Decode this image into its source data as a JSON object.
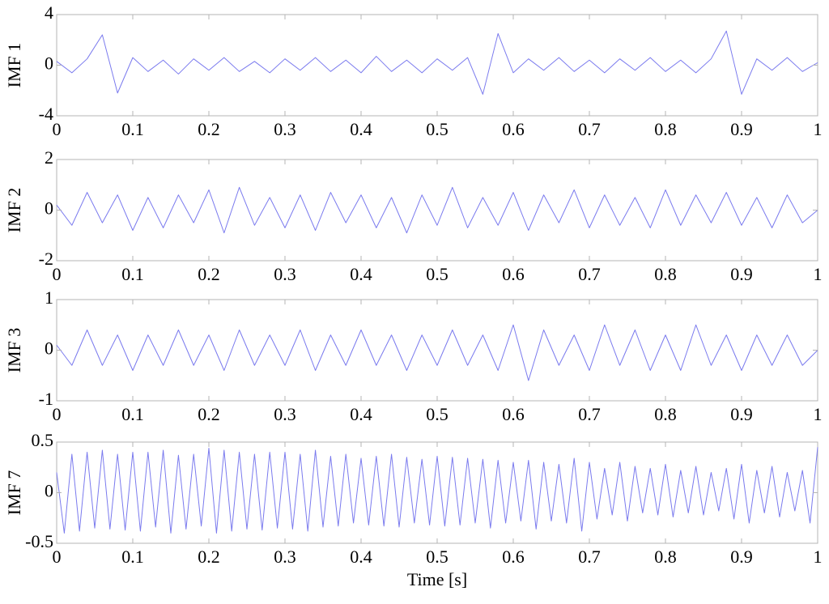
{
  "chart_data": [
    {
      "type": "line",
      "ylabel": "IMF 1",
      "xlim": [
        0,
        1
      ],
      "ylim": [
        -4,
        4
      ],
      "xticks": [
        0,
        0.1,
        0.2,
        0.3,
        0.4,
        0.5,
        0.6,
        0.7,
        0.8,
        0.9,
        1
      ],
      "yticks": [
        -4,
        0,
        4
      ],
      "x": [
        0,
        0.02,
        0.04,
        0.06,
        0.08,
        0.1,
        0.12,
        0.14,
        0.16,
        0.18,
        0.2,
        0.22,
        0.24,
        0.26,
        0.28,
        0.3,
        0.32,
        0.34,
        0.36,
        0.38,
        0.4,
        0.42,
        0.44,
        0.46,
        0.48,
        0.5,
        0.52,
        0.54,
        0.56,
        0.58,
        0.6,
        0.62,
        0.64,
        0.66,
        0.68,
        0.7,
        0.72,
        0.74,
        0.76,
        0.78,
        0.8,
        0.82,
        0.84,
        0.86,
        0.88,
        0.9,
        0.92,
        0.94,
        0.96,
        0.98,
        1
      ],
      "series": [
        {
          "color": "#7a7aee",
          "values": [
            0.3,
            -0.6,
            0.5,
            2.4,
            -2.2,
            0.6,
            -0.5,
            0.4,
            -0.7,
            0.5,
            -0.4,
            0.6,
            -0.5,
            0.3,
            -0.6,
            0.5,
            -0.4,
            0.6,
            -0.5,
            0.4,
            -0.6,
            0.7,
            -0.5,
            0.4,
            -0.6,
            0.5,
            -0.4,
            0.6,
            -2.3,
            2.5,
            -0.6,
            0.5,
            -0.4,
            0.6,
            -0.5,
            0.4,
            -0.6,
            0.5,
            -0.4,
            0.6,
            -0.5,
            0.4,
            -0.6,
            0.5,
            2.7,
            -2.3,
            0.5,
            -0.4,
            0.6,
            -0.5,
            0.2
          ]
        }
      ]
    },
    {
      "type": "line",
      "ylabel": "IMF 2",
      "xlim": [
        0,
        1
      ],
      "ylim": [
        -2,
        2
      ],
      "xticks": [
        0,
        0.1,
        0.2,
        0.3,
        0.4,
        0.5,
        0.6,
        0.7,
        0.8,
        0.9,
        1
      ],
      "yticks": [
        -2,
        0,
        2
      ],
      "x": [
        0,
        0.02,
        0.04,
        0.06,
        0.08,
        0.1,
        0.12,
        0.14,
        0.16,
        0.18,
        0.2,
        0.22,
        0.24,
        0.26,
        0.28,
        0.3,
        0.32,
        0.34,
        0.36,
        0.38,
        0.4,
        0.42,
        0.44,
        0.46,
        0.48,
        0.5,
        0.52,
        0.54,
        0.56,
        0.58,
        0.6,
        0.62,
        0.64,
        0.66,
        0.68,
        0.7,
        0.72,
        0.74,
        0.76,
        0.78,
        0.8,
        0.82,
        0.84,
        0.86,
        0.88,
        0.9,
        0.92,
        0.94,
        0.96,
        0.98,
        1
      ],
      "series": [
        {
          "color": "#7a7aee",
          "values": [
            0.2,
            -0.6,
            0.7,
            -0.5,
            0.6,
            -0.8,
            0.5,
            -0.7,
            0.6,
            -0.5,
            0.8,
            -0.9,
            0.9,
            -0.6,
            0.5,
            -0.7,
            0.6,
            -0.8,
            0.7,
            -0.5,
            0.6,
            -0.7,
            0.5,
            -0.9,
            0.6,
            -0.6,
            0.9,
            -0.7,
            0.5,
            -0.6,
            0.7,
            -0.8,
            0.6,
            -0.5,
            0.8,
            -0.7,
            0.6,
            -0.6,
            0.5,
            -0.7,
            0.8,
            -0.6,
            0.6,
            -0.5,
            0.7,
            -0.6,
            0.5,
            -0.7,
            0.6,
            -0.5,
            0.0
          ]
        }
      ]
    },
    {
      "type": "line",
      "ylabel": "IMF 3",
      "xlim": [
        0,
        1
      ],
      "ylim": [
        -1,
        1
      ],
      "xticks": [
        0,
        0.1,
        0.2,
        0.3,
        0.4,
        0.5,
        0.6,
        0.7,
        0.8,
        0.9,
        1
      ],
      "yticks": [
        -1,
        0,
        1
      ],
      "x": [
        0,
        0.02,
        0.04,
        0.06,
        0.08,
        0.1,
        0.12,
        0.14,
        0.16,
        0.18,
        0.2,
        0.22,
        0.24,
        0.26,
        0.28,
        0.3,
        0.32,
        0.34,
        0.36,
        0.38,
        0.4,
        0.42,
        0.44,
        0.46,
        0.48,
        0.5,
        0.52,
        0.54,
        0.56,
        0.58,
        0.6,
        0.62,
        0.64,
        0.66,
        0.68,
        0.7,
        0.72,
        0.74,
        0.76,
        0.78,
        0.8,
        0.82,
        0.84,
        0.86,
        0.88,
        0.9,
        0.92,
        0.94,
        0.96,
        0.98,
        1
      ],
      "series": [
        {
          "color": "#7a7aee",
          "values": [
            0.1,
            -0.3,
            0.4,
            -0.3,
            0.3,
            -0.4,
            0.3,
            -0.3,
            0.4,
            -0.3,
            0.3,
            -0.4,
            0.4,
            -0.3,
            0.3,
            -0.3,
            0.4,
            -0.4,
            0.3,
            -0.3,
            0.4,
            -0.3,
            0.3,
            -0.4,
            0.3,
            -0.3,
            0.4,
            -0.3,
            0.3,
            -0.4,
            0.5,
            -0.6,
            0.4,
            -0.3,
            0.3,
            -0.4,
            0.5,
            -0.3,
            0.4,
            -0.4,
            0.3,
            -0.4,
            0.5,
            -0.3,
            0.3,
            -0.4,
            0.3,
            -0.3,
            0.3,
            -0.3,
            0.0
          ]
        }
      ]
    },
    {
      "type": "line",
      "ylabel": "IMF 7",
      "xlabel": "Time [s]",
      "xlim": [
        0,
        1
      ],
      "ylim": [
        -0.5,
        0.5
      ],
      "xticks": [
        0,
        0.1,
        0.2,
        0.3,
        0.4,
        0.5,
        0.6,
        0.7,
        0.8,
        0.9,
        1
      ],
      "yticks": [
        -0.5,
        0,
        0.5
      ],
      "x": [
        0,
        0.01,
        0.02,
        0.03,
        0.04,
        0.05,
        0.06,
        0.07,
        0.08,
        0.09,
        0.1,
        0.11,
        0.12,
        0.13,
        0.14,
        0.15,
        0.16,
        0.17,
        0.18,
        0.19,
        0.2,
        0.21,
        0.22,
        0.23,
        0.24,
        0.25,
        0.26,
        0.27,
        0.28,
        0.29,
        0.3,
        0.31,
        0.32,
        0.33,
        0.34,
        0.35,
        0.36,
        0.37,
        0.38,
        0.39,
        0.4,
        0.41,
        0.42,
        0.43,
        0.44,
        0.45,
        0.46,
        0.47,
        0.48,
        0.49,
        0.5,
        0.51,
        0.52,
        0.53,
        0.54,
        0.55,
        0.56,
        0.57,
        0.58,
        0.59,
        0.6,
        0.61,
        0.62,
        0.63,
        0.64,
        0.65,
        0.66,
        0.67,
        0.68,
        0.69,
        0.7,
        0.71,
        0.72,
        0.73,
        0.74,
        0.75,
        0.76,
        0.77,
        0.78,
        0.79,
        0.8,
        0.81,
        0.82,
        0.83,
        0.84,
        0.85,
        0.86,
        0.87,
        0.88,
        0.89,
        0.9,
        0.91,
        0.92,
        0.93,
        0.94,
        0.95,
        0.96,
        0.97,
        0.98,
        0.99,
        1
      ],
      "series": [
        {
          "color": "#7a7aee",
          "values": [
            0.2,
            -0.4,
            0.38,
            -0.38,
            0.4,
            -0.35,
            0.42,
            -0.36,
            0.38,
            -0.37,
            0.4,
            -0.38,
            0.4,
            -0.34,
            0.42,
            -0.4,
            0.37,
            -0.36,
            0.38,
            -0.33,
            0.44,
            -0.4,
            0.42,
            -0.38,
            0.4,
            -0.36,
            0.38,
            -0.37,
            0.4,
            -0.35,
            0.4,
            -0.36,
            0.38,
            -0.38,
            0.42,
            -0.34,
            0.36,
            -0.33,
            0.38,
            -0.3,
            0.34,
            -0.32,
            0.36,
            -0.33,
            0.38,
            -0.34,
            0.35,
            -0.3,
            0.33,
            -0.32,
            0.36,
            -0.33,
            0.35,
            -0.32,
            0.34,
            -0.3,
            0.33,
            -0.35,
            0.32,
            -0.3,
            0.3,
            -0.28,
            0.32,
            -0.36,
            0.3,
            -0.28,
            0.28,
            -0.3,
            0.34,
            -0.38,
            0.3,
            -0.26,
            0.24,
            -0.22,
            0.3,
            -0.28,
            0.26,
            -0.2,
            0.24,
            -0.22,
            0.28,
            -0.24,
            0.22,
            -0.2,
            0.26,
            -0.22,
            0.2,
            -0.18,
            0.24,
            -0.26,
            0.28,
            -0.3,
            0.22,
            -0.2,
            0.26,
            -0.24,
            0.2,
            -0.18,
            0.22,
            -0.3,
            0.45
          ]
        }
      ]
    }
  ]
}
